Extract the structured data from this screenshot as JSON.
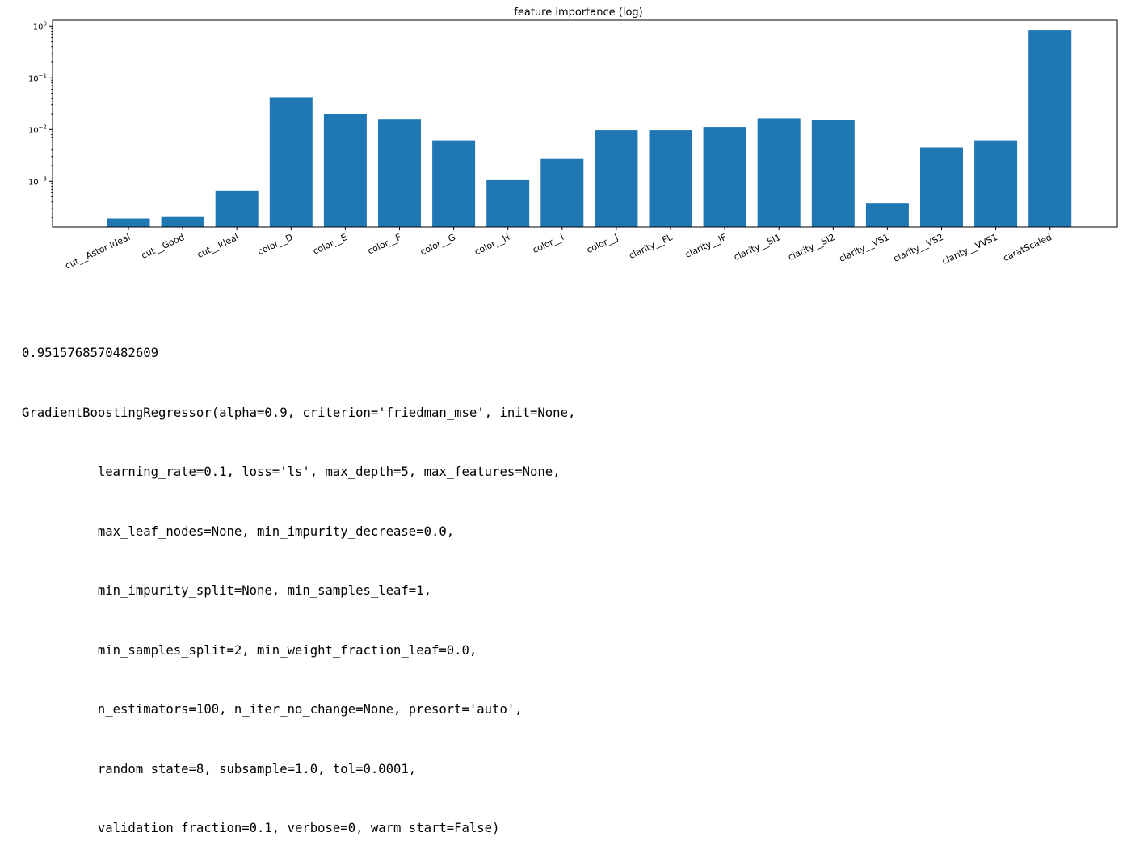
{
  "chart_data": {
    "type": "bar",
    "title": "feature importance (log)",
    "xlabel": "",
    "ylabel": "",
    "yscale": "log",
    "ylim": [
      0.00013,
      1.3
    ],
    "grid": false,
    "bar_color": "#1f77b4",
    "yticks": [
      {
        "value": 1,
        "base": "10",
        "exp": "0"
      },
      {
        "value": 0.1,
        "base": "10",
        "exp": "−1"
      },
      {
        "value": 0.01,
        "base": "10",
        "exp": "−2"
      },
      {
        "value": 0.001,
        "base": "10",
        "exp": "−3"
      }
    ],
    "categories": [
      "cut__Astor Ideal",
      "cut__Good",
      "cut__Ideal",
      "color__D",
      "color__E",
      "color__F",
      "color__G",
      "color__H",
      "color__I",
      "color__J",
      "clarity__FL",
      "clarity__IF",
      "clarity__SI1",
      "clarity__SI2",
      "clarity__VS1",
      "clarity__VS2",
      "clarity__VVS1",
      "caratScaled"
    ],
    "values": [
      0.00019,
      0.00021,
      0.00066,
      0.042,
      0.02,
      0.016,
      0.0062,
      0.00105,
      0.0027,
      0.0097,
      0.0097,
      0.0112,
      0.0165,
      0.015,
      0.00038,
      0.0045,
      0.0062,
      0.84
    ]
  },
  "output": {
    "score": "0.9515768570482609",
    "model_lines": [
      "GradientBoostingRegressor(alpha=0.9, criterion='friedman_mse', init=None,",
      "          learning_rate=0.1, loss='ls', max_depth=5, max_features=None,",
      "          max_leaf_nodes=None, min_impurity_decrease=0.0,",
      "          min_impurity_split=None, min_samples_leaf=1,",
      "          min_samples_split=2, min_weight_fraction_leaf=0.0,",
      "          n_estimators=100, n_iter_no_change=None, presort='auto',",
      "          random_state=8, subsample=1.0, tol=0.0001,",
      "          validation_fraction=0.1, verbose=0, warm_start=False)"
    ]
  }
}
